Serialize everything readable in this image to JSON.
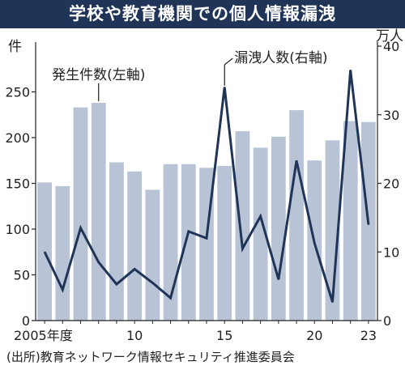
{
  "title": "学校や教育機関での個人情報漏洩",
  "source": "(出所)教育ネットワーク情報セキュリティ推進委員会",
  "chart_data": {
    "type": "bar+line",
    "years": [
      2005,
      2006,
      2007,
      2008,
      2009,
      2010,
      2011,
      2012,
      2013,
      2014,
      2015,
      2016,
      2017,
      2018,
      2019,
      2020,
      2021,
      2022,
      2023
    ],
    "x_tick_labels": [
      "2005年度",
      "",
      "",
      "",
      "",
      "10",
      "",
      "",
      "",
      "",
      "15",
      "",
      "",
      "",
      "",
      "20",
      "",
      "",
      "23"
    ],
    "left_axis": {
      "unit_label": "件",
      "min": 0,
      "max": 300,
      "ticks": [
        0,
        50,
        100,
        150,
        200,
        250
      ]
    },
    "right_axis": {
      "unit_label": "万人",
      "min": 0,
      "max": 40,
      "ticks": [
        0,
        10,
        20,
        30,
        40
      ]
    },
    "series": [
      {
        "name": "発生件数(左軸)",
        "type": "bar",
        "axis": "left",
        "color": "#b8c3d6",
        "values": [
          151,
          147,
          233,
          238,
          173,
          163,
          143,
          171,
          171,
          167,
          169,
          207,
          189,
          201,
          230,
          175,
          197,
          218,
          217
        ]
      },
      {
        "name": "漏洩人数(右軸)",
        "type": "line",
        "axis": "right",
        "color": "#1f3456",
        "values": [
          10,
          4.5,
          13.5,
          8.5,
          5.3,
          7.5,
          5.5,
          3.3,
          13,
          12,
          34,
          10.5,
          15.2,
          6,
          23.3,
          11.3,
          2.7,
          36.5,
          14
        ]
      }
    ]
  }
}
